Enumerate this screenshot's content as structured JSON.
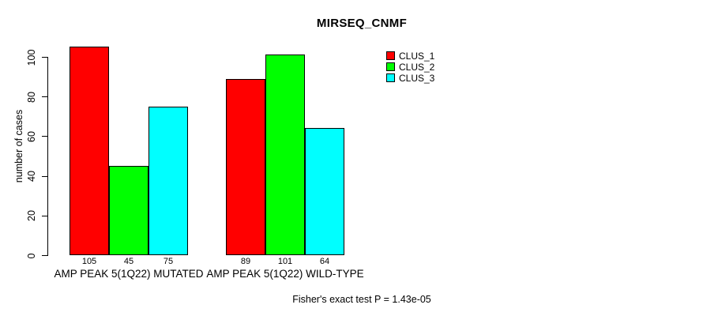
{
  "chart_data": {
    "type": "bar",
    "title": "MIRSEQ_CNMF",
    "ylabel": "number of cases",
    "xlabel": "",
    "ylim": [
      0,
      105
    ],
    "yticks": [
      0,
      20,
      40,
      60,
      80,
      100
    ],
    "grid": false,
    "legend_position": "top-right-outside",
    "categories": [
      "AMP PEAK 5(1Q22) MUTATED",
      "AMP PEAK 5(1Q22) WILD-TYPE"
    ],
    "series": [
      {
        "name": "CLUS_1",
        "color": "#FF0000",
        "values": [
          105,
          89
        ]
      },
      {
        "name": "CLUS_2",
        "color": "#00FF00",
        "values": [
          45,
          101
        ]
      },
      {
        "name": "CLUS_3",
        "color": "#00FFFF",
        "values": [
          75,
          64
        ]
      }
    ],
    "bar_value_labels": [
      [
        105,
        45,
        75
      ],
      [
        89,
        101,
        64
      ]
    ],
    "annotation": "Fisher's exact test P = 1.43e-05"
  },
  "colors": {
    "background": "#FFFFFF",
    "axis": "#000000",
    "text": "#000000",
    "clus_1": "#FF0000",
    "clus_2": "#00FF00",
    "clus_3": "#00FFFF"
  }
}
